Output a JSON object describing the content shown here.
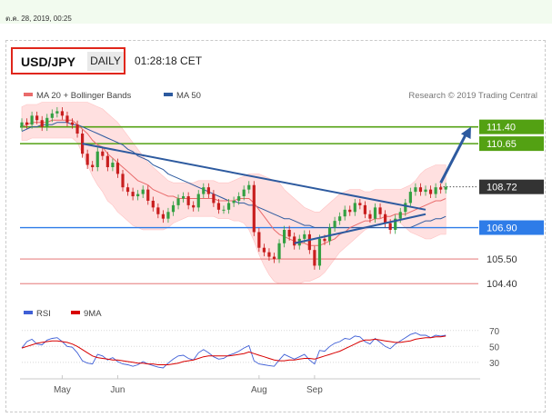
{
  "header": {
    "timestamp": "ต.ค. 28, 2019, 00:25",
    "pair": "USD/JPY",
    "timeframe": "DAILY",
    "time": "01:28:18 CET"
  },
  "colors": {
    "up_candle": "#33a042",
    "down_candle": "#c81e1e",
    "ma20": "#e96b6b",
    "ma50": "#2d5a9f",
    "bollinger": "#ffd6d6",
    "resistance": "#53a113",
    "support": "#2e7ce8",
    "lower_support": "#e06060",
    "rsi": "#3f5fd6",
    "rsi_ma": "#d80000"
  },
  "chart_data": [
    {
      "type": "candlestick",
      "legend": [
        {
          "name": "MA 20 + Bollinger Bands",
          "color": "#e96b6b"
        },
        {
          "name": "MA 50",
          "color": "#2d5a9f"
        }
      ],
      "legend_position": "top-left",
      "credit": "Research © 2019 Trading Central",
      "ylim": [
        104.0,
        112.4
      ],
      "x_labels": [
        "May",
        "Jun",
        "Aug",
        "Sep"
      ],
      "x_label_index": [
        8,
        19,
        47,
        58
      ],
      "closes": [
        111.6,
        111.5,
        111.9,
        111.7,
        111.4,
        111.8,
        112.0,
        112.1,
        111.9,
        111.6,
        111.5,
        111.1,
        110.2,
        109.7,
        109.6,
        110.3,
        110.1,
        109.6,
        109.8,
        109.3,
        108.7,
        108.5,
        108.3,
        108.4,
        108.6,
        108.1,
        107.8,
        107.5,
        107.3,
        107.6,
        107.9,
        108.2,
        108.3,
        107.9,
        107.8,
        108.4,
        108.7,
        108.4,
        108.0,
        107.7,
        107.7,
        108.0,
        108.1,
        108.3,
        108.6,
        108.8,
        106.7,
        106.0,
        105.8,
        105.6,
        105.5,
        106.2,
        106.8,
        106.5,
        106.1,
        106.4,
        106.6,
        105.9,
        105.2,
        106.4,
        106.3,
        106.9,
        107.2,
        107.4,
        107.7,
        107.6,
        108.0,
        107.9,
        107.5,
        107.3,
        107.8,
        107.5,
        107.1,
        106.8,
        107.3,
        107.6,
        108.0,
        108.5,
        108.7,
        108.5,
        108.6,
        108.4,
        108.7,
        108.6,
        108.72
      ],
      "ma20": [
        111.4,
        111.5,
        111.6,
        111.6,
        111.6,
        111.6,
        111.7,
        111.7,
        111.7,
        111.7,
        111.7,
        111.5,
        111.3,
        111.1,
        110.8,
        110.6,
        110.5,
        110.2,
        110.0,
        109.8,
        109.6,
        109.4,
        109.2,
        109.0,
        108.9,
        108.8,
        108.6,
        108.5,
        108.4,
        108.3,
        108.3,
        108.2,
        108.2,
        108.2,
        108.2,
        108.2,
        108.2,
        108.2,
        108.2,
        108.1,
        108.1,
        108.1,
        108.1,
        108.2,
        108.2,
        108.2,
        108.0,
        107.7,
        107.4,
        107.1,
        106.8,
        106.6,
        106.5,
        106.4,
        106.3,
        106.2,
        106.2,
        106.1,
        106.1,
        106.1,
        106.2,
        106.3,
        106.4,
        106.6,
        106.7,
        106.9,
        107.0,
        107.1,
        107.2,
        107.2,
        107.3,
        107.3,
        107.4,
        107.4,
        107.5,
        107.5,
        107.5,
        107.6,
        107.7,
        107.8,
        107.9,
        108.0,
        108.1,
        108.1,
        108.2
      ],
      "ma50": [
        111.2,
        111.3,
        111.4,
        111.4,
        111.5,
        111.5,
        111.5,
        111.6,
        111.6,
        111.6,
        111.5,
        111.5,
        111.4,
        111.3,
        111.2,
        111.1,
        111.0,
        110.9,
        110.8,
        110.7,
        110.6,
        110.4,
        110.3,
        110.1,
        110.0,
        109.9,
        109.7,
        109.6,
        109.5,
        109.3,
        109.2,
        109.1,
        109.0,
        108.9,
        108.8,
        108.7,
        108.6,
        108.5,
        108.4,
        108.3,
        108.2,
        108.1,
        108.1,
        108.0,
        108.0,
        107.9,
        107.9,
        107.8,
        107.7,
        107.6,
        107.5,
        107.4,
        107.3,
        107.3,
        107.2,
        107.1,
        107.0,
        107.0,
        106.9,
        106.9,
        106.9,
        106.9,
        106.9,
        106.9,
        106.9,
        106.9,
        106.9,
        106.9,
        106.9,
        106.9,
        106.9,
        106.9,
        106.9,
        106.9,
        106.9,
        106.9,
        106.9,
        106.9,
        107.0,
        107.1,
        107.2,
        107.2,
        107.3,
        107.3,
        107.4
      ],
      "boll_upper": [
        112.3,
        112.4,
        112.4,
        112.4,
        112.5,
        112.5,
        112.5,
        112.5,
        112.5,
        112.5,
        112.5,
        112.5,
        112.5,
        112.5,
        112.4,
        112.3,
        112.2,
        112.0,
        111.8,
        111.6,
        111.3,
        111.0,
        110.7,
        110.4,
        110.1,
        109.8,
        109.6,
        109.4,
        109.2,
        109.0,
        108.9,
        108.9,
        108.9,
        108.9,
        108.9,
        109.0,
        109.0,
        109.0,
        109.0,
        108.9,
        108.9,
        108.9,
        109.0,
        109.1,
        109.2,
        109.3,
        109.3,
        109.3,
        109.2,
        109.1,
        109.0,
        108.9,
        108.6,
        108.4,
        108.2,
        108.0,
        107.8,
        107.7,
        107.6,
        107.6,
        107.8,
        108.0,
        108.2,
        108.4,
        108.5,
        108.6,
        108.6,
        108.6,
        108.5,
        108.5,
        108.6,
        108.6,
        108.6,
        108.6,
        108.6,
        108.6,
        108.7,
        108.8,
        109.0,
        109.3,
        109.5,
        109.6,
        109.7,
        109.7,
        109.7
      ],
      "boll_lower": [
        110.8,
        110.8,
        110.9,
        110.9,
        110.9,
        110.9,
        110.9,
        110.9,
        110.9,
        110.9,
        110.9,
        110.7,
        110.2,
        109.7,
        109.2,
        108.8,
        108.5,
        108.1,
        107.9,
        107.6,
        107.4,
        107.2,
        107.0,
        106.9,
        106.8,
        106.8,
        106.8,
        106.8,
        106.8,
        106.9,
        107.1,
        107.2,
        107.3,
        107.4,
        107.4,
        107.4,
        107.4,
        107.4,
        107.4,
        107.3,
        107.3,
        107.3,
        107.2,
        107.2,
        107.1,
        106.8,
        106.3,
        105.7,
        105.2,
        104.8,
        104.5,
        104.4,
        104.4,
        104.4,
        104.4,
        104.4,
        104.5,
        104.5,
        104.6,
        104.7,
        104.9,
        105.2,
        105.5,
        105.8,
        106.0,
        106.2,
        106.4,
        106.6,
        106.8,
        106.9,
        107.0,
        107.0,
        107.1,
        107.2,
        107.2,
        107.1,
        106.9,
        106.7,
        106.6,
        106.5,
        106.4,
        106.4,
        106.5,
        106.6,
        106.6
      ],
      "trend_lines": [
        {
          "from_index": 12,
          "from_value": 110.65,
          "to_index": 80,
          "to_value": 107.7
        },
        {
          "from_index": 54,
          "from_value": 106.2,
          "to_index": 80,
          "to_value": 107.5
        }
      ],
      "projection": {
        "from_index": 83,
        "from_value": 108.9,
        "to_index": 89,
        "to_value": 111.4
      },
      "levels": [
        {
          "value": 111.4,
          "label": "111.40",
          "kind": "resistance"
        },
        {
          "value": 110.65,
          "label": "110.65",
          "kind": "resistance"
        },
        {
          "value": 108.72,
          "label": "108.72",
          "kind": "last"
        },
        {
          "value": 106.9,
          "label": "106.90",
          "kind": "support"
        },
        {
          "value": 105.5,
          "label": "105.50",
          "kind": "lower"
        },
        {
          "value": 104.4,
          "label": "104.40",
          "kind": "lower"
        }
      ],
      "secondary_grid_values": [
        111.4,
        110.65,
        106.9
      ]
    },
    {
      "type": "line",
      "legend": [
        {
          "name": "RSI",
          "color": "#3f5fd6"
        },
        {
          "name": "9MA",
          "color": "#d80000"
        }
      ],
      "legend_position": "top-left",
      "ylim": [
        15,
        80
      ],
      "y_ticks": [
        30,
        50,
        70
      ],
      "rsi": [
        48,
        56,
        59,
        53,
        52,
        58,
        60,
        61,
        56,
        50,
        49,
        42,
        32,
        29,
        28,
        40,
        38,
        33,
        36,
        31,
        28,
        27,
        25,
        27,
        31,
        28,
        26,
        24,
        23,
        29,
        34,
        38,
        39,
        35,
        33,
        42,
        46,
        42,
        37,
        34,
        35,
        39,
        41,
        44,
        48,
        51,
        32,
        28,
        27,
        26,
        25,
        33,
        40,
        37,
        34,
        37,
        40,
        33,
        28,
        45,
        44,
        50,
        54,
        56,
        60,
        59,
        63,
        62,
        56,
        53,
        60,
        55,
        50,
        47,
        53,
        57,
        61,
        65,
        67,
        64,
        64,
        61,
        64,
        63,
        64
      ],
      "rsi_ma": [
        48,
        50,
        52,
        54,
        55,
        56,
        57,
        57,
        56,
        55,
        53,
        50,
        46,
        42,
        38,
        36,
        35,
        34,
        33,
        33,
        32,
        31,
        30,
        29,
        29,
        28,
        28,
        27,
        27,
        27,
        28,
        29,
        31,
        32,
        33,
        35,
        37,
        38,
        38,
        38,
        38,
        38,
        39,
        40,
        41,
        43,
        41,
        39,
        37,
        35,
        33,
        32,
        32,
        33,
        33,
        34,
        35,
        35,
        34,
        36,
        38,
        40,
        42,
        44,
        47,
        50,
        53,
        56,
        58,
        58,
        59,
        58,
        57,
        56,
        55,
        55,
        56,
        57,
        59,
        60,
        61,
        61,
        62,
        62,
        63
      ]
    }
  ]
}
